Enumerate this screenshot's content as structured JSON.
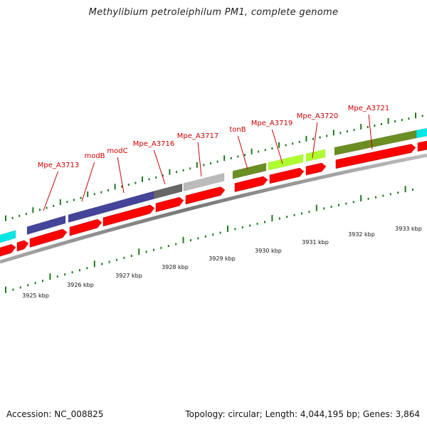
{
  "title": "Methylibium petroleiphilum PM1, complete genome",
  "footer": {
    "accession": "Accession: NC_008825",
    "stats": "Topology: circular; Length: 4,044,195 bp; Genes: 3,864"
  },
  "colors": {
    "cds_forward": "#ff0000",
    "backbone": "#8a8a8a",
    "gc_tick": "#1e7a1e",
    "label": "#cc0000"
  },
  "gene_labels": [
    "Mpe_A3713",
    "modB",
    "modC",
    "Mpe_A3716",
    "Mpe_A3717",
    "tonB",
    "Mpe_A3719",
    "Mpe_A3720",
    "Mpe_A3721"
  ],
  "scale_labels": [
    "3925 kbp",
    "3926 kbp",
    "3927 kbp",
    "3928 kbp",
    "3929 kbp",
    "3930 kbp",
    "3931 kbp",
    "3932 kbp",
    "3933 kbp"
  ]
}
